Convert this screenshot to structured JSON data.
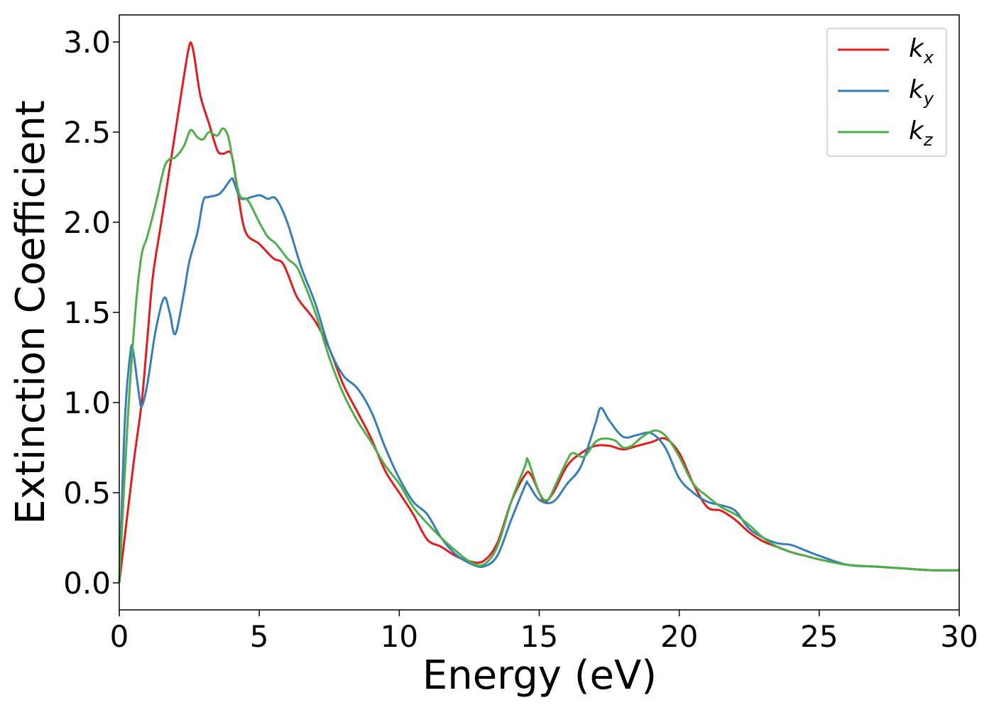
{
  "chart_data": {
    "type": "line",
    "title": "",
    "xlabel": "Energy (eV)",
    "ylabel": "Extinction Coefficient",
    "xlim": [
      0,
      30
    ],
    "ylim": [
      -0.15,
      3.15
    ],
    "xticks": [
      0,
      5,
      10,
      15,
      20,
      25,
      30
    ],
    "xtick_labels": [
      "0",
      "5",
      "10",
      "15",
      "20",
      "25",
      "30"
    ],
    "yticks": [
      0.0,
      0.5,
      1.0,
      1.5,
      2.0,
      2.5,
      3.0
    ],
    "ytick_labels": [
      "0.0",
      "0.5",
      "1.0",
      "1.5",
      "2.0",
      "2.5",
      "3.0"
    ],
    "grid": false,
    "legend_position": "top-right",
    "series": [
      {
        "name": "k_x",
        "legend_base": "k",
        "legend_sub": "x",
        "color": "#e41a1c",
        "x": [
          0,
          0.5,
          0.8,
          1.0,
          1.2,
          1.5,
          2.0,
          2.3,
          2.5,
          2.6,
          2.7,
          2.9,
          3.2,
          3.5,
          3.7,
          4.0,
          4.2,
          4.5,
          5.0,
          5.5,
          5.8,
          6.0,
          6.3,
          6.5,
          7.0,
          7.5,
          8.0,
          8.5,
          9.0,
          9.5,
          10.0,
          10.5,
          11.0,
          11.5,
          12.0,
          12.5,
          13.0,
          13.5,
          14.0,
          14.5,
          14.7,
          15.0,
          15.2,
          15.5,
          16.0,
          16.5,
          17.0,
          17.5,
          18.0,
          18.5,
          19.0,
          19.5,
          20.0,
          20.5,
          21.0,
          21.5,
          22.0,
          22.5,
          23.0,
          23.5,
          24.0,
          24.5,
          25.0,
          26.0,
          27.0,
          28.0,
          29.0,
          30.0
        ],
        "y": [
          0.0,
          0.65,
          1.0,
          1.35,
          1.7,
          2.0,
          2.5,
          2.8,
          2.98,
          2.98,
          2.9,
          2.7,
          2.55,
          2.4,
          2.38,
          2.38,
          2.2,
          1.95,
          1.88,
          1.8,
          1.78,
          1.72,
          1.6,
          1.55,
          1.45,
          1.3,
          1.1,
          0.95,
          0.8,
          0.62,
          0.5,
          0.38,
          0.24,
          0.2,
          0.15,
          0.12,
          0.12,
          0.22,
          0.45,
          0.6,
          0.6,
          0.5,
          0.45,
          0.5,
          0.65,
          0.72,
          0.76,
          0.76,
          0.74,
          0.76,
          0.78,
          0.8,
          0.72,
          0.55,
          0.42,
          0.4,
          0.35,
          0.28,
          0.23,
          0.2,
          0.17,
          0.15,
          0.13,
          0.1,
          0.09,
          0.08,
          0.07,
          0.07
        ]
      },
      {
        "name": "k_y",
        "legend_base": "k",
        "legend_sub": "y",
        "color": "#377eb8",
        "x": [
          0,
          0.2,
          0.4,
          0.5,
          0.7,
          0.8,
          1.0,
          1.3,
          1.6,
          1.8,
          2.0,
          2.3,
          2.5,
          2.8,
          3.0,
          3.2,
          3.6,
          4.0,
          4.1,
          4.3,
          4.5,
          5.0,
          5.3,
          5.6,
          6.0,
          6.5,
          7.0,
          7.5,
          8.0,
          8.5,
          9.0,
          9.5,
          10.0,
          10.5,
          11.0,
          11.5,
          12.0,
          12.5,
          13.0,
          13.5,
          14.0,
          14.5,
          14.6,
          15.0,
          15.5,
          16.0,
          16.5,
          17.0,
          17.2,
          17.5,
          18.0,
          18.5,
          19.0,
          19.5,
          20.0,
          20.5,
          21.0,
          21.5,
          22.0,
          22.5,
          23.0,
          23.5,
          24.0,
          24.5,
          25.0,
          26.0,
          27.0,
          28.0,
          29.0,
          30.0
        ],
        "y": [
          0.0,
          0.9,
          1.28,
          1.28,
          1.05,
          0.98,
          1.1,
          1.4,
          1.58,
          1.5,
          1.38,
          1.6,
          1.78,
          1.95,
          2.12,
          2.14,
          2.16,
          2.24,
          2.22,
          2.14,
          2.13,
          2.15,
          2.13,
          2.13,
          2.0,
          1.75,
          1.55,
          1.3,
          1.15,
          1.08,
          0.95,
          0.75,
          0.58,
          0.45,
          0.38,
          0.25,
          0.16,
          0.11,
          0.09,
          0.15,
          0.35,
          0.54,
          0.55,
          0.46,
          0.45,
          0.55,
          0.65,
          0.88,
          0.97,
          0.9,
          0.81,
          0.82,
          0.83,
          0.75,
          0.58,
          0.5,
          0.45,
          0.43,
          0.4,
          0.3,
          0.25,
          0.22,
          0.21,
          0.18,
          0.15,
          0.1,
          0.09,
          0.08,
          0.07,
          0.07
        ]
      },
      {
        "name": "k_z",
        "legend_base": "k",
        "legend_sub": "z",
        "color": "#4daf4a",
        "x": [
          0,
          0.3,
          0.6,
          0.8,
          1.0,
          1.3,
          1.6,
          1.8,
          2.0,
          2.3,
          2.5,
          2.6,
          2.8,
          3.0,
          3.2,
          3.5,
          3.7,
          3.9,
          4.1,
          4.3,
          4.6,
          5.0,
          5.3,
          5.6,
          6.0,
          6.3,
          6.5,
          7.0,
          7.5,
          8.0,
          8.5,
          9.0,
          9.5,
          10.0,
          10.5,
          11.0,
          11.5,
          12.0,
          12.5,
          13.0,
          13.5,
          14.0,
          14.5,
          14.6,
          15.0,
          15.3,
          15.6,
          16.0,
          16.2,
          16.6,
          17.0,
          17.3,
          17.7,
          18.0,
          18.3,
          18.6,
          19.0,
          19.3,
          19.6,
          20.0,
          20.5,
          21.0,
          21.5,
          22.0,
          22.5,
          23.0,
          23.5,
          24.0,
          24.5,
          25.0,
          26.0,
          27.0,
          28.0,
          29.0,
          30.0
        ],
        "y": [
          0.0,
          0.9,
          1.55,
          1.82,
          1.92,
          2.1,
          2.3,
          2.35,
          2.36,
          2.42,
          2.5,
          2.51,
          2.47,
          2.46,
          2.5,
          2.48,
          2.52,
          2.47,
          2.3,
          2.15,
          2.12,
          2.0,
          1.92,
          1.88,
          1.8,
          1.76,
          1.7,
          1.5,
          1.25,
          1.05,
          0.9,
          0.78,
          0.65,
          0.55,
          0.42,
          0.33,
          0.25,
          0.18,
          0.12,
          0.1,
          0.2,
          0.45,
          0.65,
          0.68,
          0.5,
          0.46,
          0.55,
          0.68,
          0.72,
          0.7,
          0.78,
          0.8,
          0.79,
          0.75,
          0.76,
          0.8,
          0.84,
          0.84,
          0.8,
          0.7,
          0.55,
          0.48,
          0.42,
          0.38,
          0.32,
          0.25,
          0.2,
          0.17,
          0.15,
          0.13,
          0.1,
          0.09,
          0.08,
          0.07,
          0.07
        ]
      }
    ]
  }
}
